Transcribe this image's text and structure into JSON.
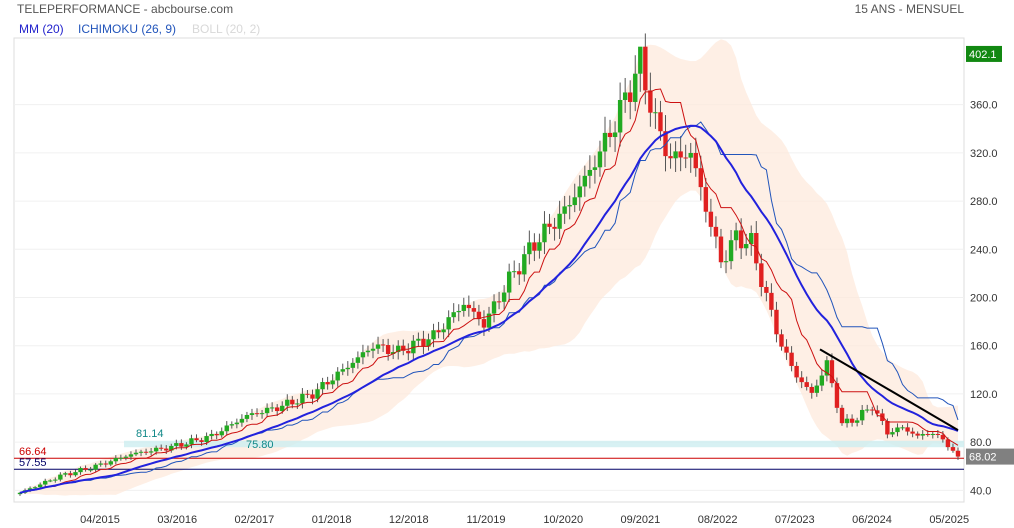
{
  "header": {
    "title": "TELEPERFORMANCE - abcbourse.com",
    "period": "15 ANS - MENSUEL"
  },
  "legend": {
    "mm": "MM (20)",
    "ichimoku": "ICHIMOKU (26, 9)",
    "boll": "BOLL (20, 2)"
  },
  "colors": {
    "candle_up": "#22aa22",
    "candle_down": "#e02020",
    "mm": "#2222dd",
    "ichimoku_base": "#2255bb",
    "ichimoku_tenkan": "#cc1111",
    "boll_fill": "#fde9dc",
    "support_band": "#cdeef0",
    "last_price_bg": "#808080",
    "max_price_bg": "#118811"
  },
  "chart_data": {
    "type": "candlestick",
    "ylim": [
      32,
      412
    ],
    "y_ticks": [
      40,
      80,
      120,
      160,
      200,
      240,
      280,
      320,
      360
    ],
    "y_tick_labels": [
      "40.0",
      "80.0",
      "120.0",
      "160.0",
      "200.0",
      "240.0",
      "280.0",
      "320.0",
      "360.0"
    ],
    "x_labels": [
      "04/2015",
      "03/2016",
      "02/2017",
      "01/2018",
      "12/2018",
      "11/2019",
      "10/2020",
      "09/2021",
      "08/2022",
      "07/2023",
      "06/2024",
      "05/2025"
    ],
    "max_price_label": "402.1",
    "max_price": 402.1,
    "last_price_label": "68.02",
    "last_price": 68.02,
    "h_levels": [
      {
        "label": "66.64",
        "value": 66.64,
        "color": "#cc0000"
      },
      {
        "label": "57.55",
        "value": 57.55,
        "color": "#000066"
      }
    ],
    "support_band": {
      "label": "81.14",
      "secondary_label": "75.80",
      "from": 75.8,
      "to": 81.14
    },
    "trendline": {
      "start_value": 157,
      "end_value": 90
    },
    "close_anchors": [
      [
        0,
        38
      ],
      [
        8,
        52
      ],
      [
        15,
        60
      ],
      [
        22,
        70
      ],
      [
        30,
        76
      ],
      [
        38,
        85
      ],
      [
        45,
        102
      ],
      [
        52,
        110
      ],
      [
        58,
        120
      ],
      [
        65,
        143
      ],
      [
        70,
        160
      ],
      [
        75,
        155
      ],
      [
        82,
        168
      ],
      [
        88,
        195
      ],
      [
        92,
        178
      ],
      [
        97,
        215
      ],
      [
        102,
        245
      ],
      [
        108,
        272
      ],
      [
        113,
        305
      ],
      [
        118,
        345
      ],
      [
        121,
        375
      ],
      [
        123,
        395
      ],
      [
        126,
        345
      ],
      [
        129,
        315
      ],
      [
        133,
        320
      ],
      [
        136,
        275
      ],
      [
        139,
        230
      ],
      [
        142,
        250
      ],
      [
        145,
        245
      ],
      [
        148,
        200
      ],
      [
        151,
        160
      ],
      [
        154,
        135
      ],
      [
        157,
        120
      ],
      [
        160,
        145
      ],
      [
        163,
        95
      ],
      [
        166,
        100
      ],
      [
        169,
        110
      ],
      [
        172,
        88
      ],
      [
        175,
        92
      ],
      [
        178,
        85
      ],
      [
        181,
        88
      ],
      [
        184,
        78
      ],
      [
        186,
        68
      ]
    ]
  }
}
